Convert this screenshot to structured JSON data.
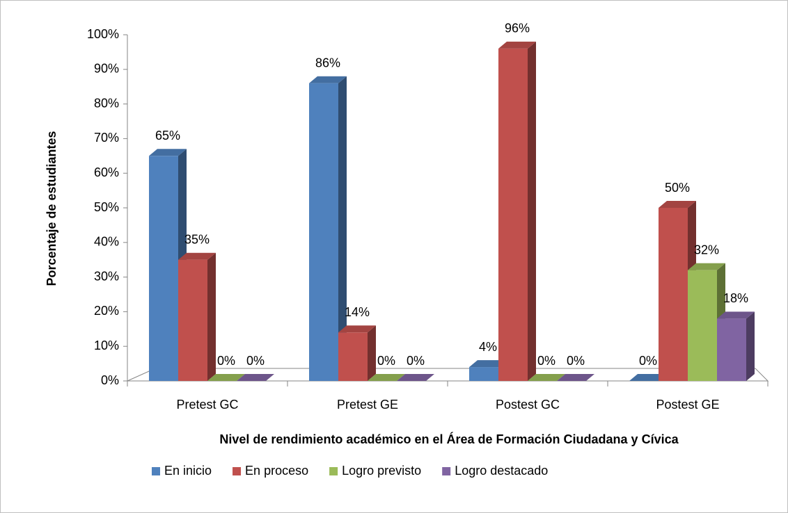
{
  "chart_data": {
    "type": "bar3d",
    "x_label": "Nivel de rendimiento académico en el Área de Formación Ciudadana y Cívica",
    "y_label": "Porcentaje de estudiantes",
    "categories": [
      "Pretest GC",
      "Pretest GE",
      "Postest GC",
      "Postest GE"
    ],
    "series": [
      {
        "name": "En inicio",
        "color": "#4f81bd",
        "values": [
          65,
          86,
          4,
          0
        ],
        "value_labels": [
          "65%",
          "86%",
          "4%",
          "0%"
        ]
      },
      {
        "name": "En proceso",
        "color": "#c0504d",
        "values": [
          35,
          14,
          96,
          50
        ],
        "value_labels": [
          "35%",
          "14%",
          "96%",
          "50%"
        ]
      },
      {
        "name": "Logro previsto",
        "color": "#9bbb59",
        "values": [
          0,
          0,
          0,
          32
        ],
        "value_labels": [
          "0%",
          "0%",
          "0%",
          "32%"
        ]
      },
      {
        "name": "Logro destacado",
        "color": "#8064a2",
        "values": [
          0,
          0,
          0,
          18
        ],
        "value_labels": [
          "0%",
          "0%",
          "0%",
          "18%"
        ]
      }
    ],
    "ylim": [
      0,
      100
    ],
    "yticks": [
      {
        "value": 0,
        "label": "0%"
      },
      {
        "value": 10,
        "label": "10%"
      },
      {
        "value": 20,
        "label": "20%"
      },
      {
        "value": 30,
        "label": "30%"
      },
      {
        "value": 40,
        "label": "40%"
      },
      {
        "value": 50,
        "label": "50%"
      },
      {
        "value": 60,
        "label": "60%"
      },
      {
        "value": 70,
        "label": "70%"
      },
      {
        "value": 80,
        "label": "80%"
      },
      {
        "value": 90,
        "label": "90%"
      },
      {
        "value": 100,
        "label": "100%"
      }
    ],
    "grid": false,
    "legend": "bottom"
  }
}
